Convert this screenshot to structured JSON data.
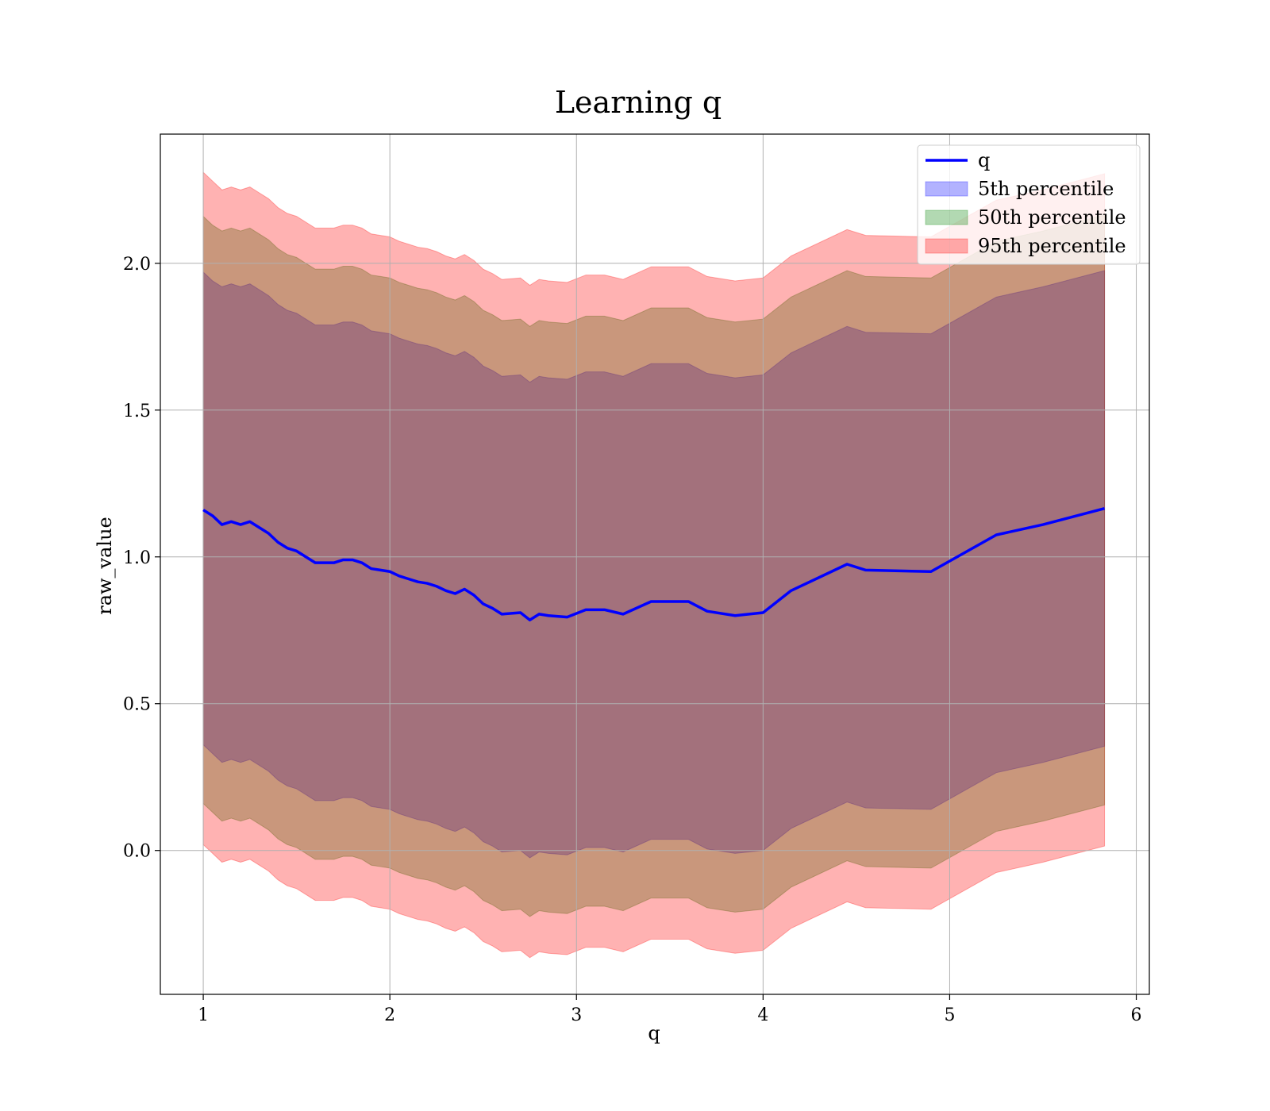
{
  "chart_data": {
    "type": "line",
    "title": "Learning q",
    "xlabel": "q",
    "ylabel": "raw_value",
    "xlim": [
      0.77,
      6.07
    ],
    "ylim": [
      -0.49,
      2.44
    ],
    "xticks": [
      1,
      2,
      3,
      4,
      5,
      6
    ],
    "yticks": [
      0.0,
      0.5,
      1.0,
      1.5,
      2.0
    ],
    "xtick_labels": [
      "1",
      "2",
      "3",
      "4",
      "5",
      "6"
    ],
    "ytick_labels": [
      "0.0",
      "0.5",
      "1.0",
      "1.5",
      "2.0"
    ],
    "grid": true,
    "legend_position": "top-right",
    "colors": {
      "line": "#0000ff",
      "band_5": "#0000ff",
      "band_50": "#008000",
      "band_95": "#ff0000"
    },
    "legend": [
      "q",
      "5th percentile",
      "50th percentile",
      "95th percentile"
    ],
    "x": [
      1.0,
      1.05,
      1.1,
      1.15,
      1.2,
      1.25,
      1.3,
      1.35,
      1.4,
      1.45,
      1.5,
      1.55,
      1.6,
      1.65,
      1.7,
      1.75,
      1.8,
      1.85,
      1.9,
      1.95,
      2.0,
      2.05,
      2.1,
      2.15,
      2.2,
      2.25,
      2.3,
      2.35,
      2.4,
      2.45,
      2.5,
      2.55,
      2.6,
      2.7,
      2.75,
      2.8,
      2.85,
      2.95,
      3.05,
      3.15,
      3.25,
      3.4,
      3.6,
      3.7,
      3.85,
      4.0,
      4.15,
      4.45,
      4.55,
      4.9,
      5.25,
      5.5,
      5.83
    ],
    "series": [
      {
        "name": "q",
        "values": [
          1.16,
          1.14,
          1.11,
          1.12,
          1.11,
          1.12,
          1.1,
          1.08,
          1.05,
          1.03,
          1.02,
          1.0,
          0.98,
          0.98,
          0.98,
          0.99,
          0.99,
          0.98,
          0.96,
          0.955,
          0.95,
          0.935,
          0.925,
          0.915,
          0.91,
          0.9,
          0.885,
          0.875,
          0.89,
          0.87,
          0.84,
          0.825,
          0.805,
          0.81,
          0.785,
          0.805,
          0.8,
          0.795,
          0.82,
          0.82,
          0.805,
          0.848,
          0.848,
          0.815,
          0.8,
          0.81,
          0.885,
          0.975,
          0.955,
          0.95,
          1.075,
          1.11,
          1.165
        ]
      }
    ],
    "bands": [
      {
        "name": "5th percentile",
        "lower": [
          0.36,
          0.33,
          0.3,
          0.31,
          0.3,
          0.31,
          0.29,
          0.27,
          0.24,
          0.22,
          0.21,
          0.19,
          0.17,
          0.17,
          0.17,
          0.18,
          0.18,
          0.17,
          0.15,
          0.145,
          0.14,
          0.125,
          0.115,
          0.105,
          0.1,
          0.09,
          0.075,
          0.065,
          0.08,
          0.06,
          0.03,
          0.015,
          -0.005,
          0.0,
          -0.025,
          -0.005,
          -0.01,
          -0.015,
          0.01,
          0.01,
          -0.005,
          0.038,
          0.038,
          0.005,
          -0.01,
          0.0,
          0.075,
          0.165,
          0.145,
          0.14,
          0.265,
          0.3,
          0.355
        ],
        "upper": [
          1.97,
          1.94,
          1.92,
          1.93,
          1.92,
          1.93,
          1.91,
          1.89,
          1.86,
          1.84,
          1.83,
          1.81,
          1.79,
          1.79,
          1.79,
          1.8,
          1.8,
          1.79,
          1.77,
          1.765,
          1.76,
          1.745,
          1.735,
          1.725,
          1.72,
          1.71,
          1.695,
          1.685,
          1.7,
          1.68,
          1.65,
          1.635,
          1.615,
          1.62,
          1.595,
          1.615,
          1.61,
          1.605,
          1.63,
          1.63,
          1.615,
          1.658,
          1.658,
          1.625,
          1.61,
          1.62,
          1.695,
          1.785,
          1.765,
          1.76,
          1.885,
          1.92,
          1.975
        ]
      },
      {
        "name": "50th percentile",
        "lower": [
          0.16,
          0.13,
          0.1,
          0.11,
          0.1,
          0.11,
          0.09,
          0.07,
          0.04,
          0.02,
          0.01,
          -0.01,
          -0.03,
          -0.03,
          -0.03,
          -0.02,
          -0.02,
          -0.03,
          -0.05,
          -0.055,
          -0.06,
          -0.075,
          -0.085,
          -0.095,
          -0.1,
          -0.11,
          -0.125,
          -0.135,
          -0.12,
          -0.14,
          -0.17,
          -0.185,
          -0.205,
          -0.2,
          -0.225,
          -0.205,
          -0.21,
          -0.215,
          -0.19,
          -0.19,
          -0.205,
          -0.162,
          -0.162,
          -0.195,
          -0.21,
          -0.2,
          -0.125,
          -0.035,
          -0.055,
          -0.06,
          0.065,
          0.1,
          0.155
        ],
        "upper": [
          2.16,
          2.13,
          2.11,
          2.12,
          2.11,
          2.12,
          2.1,
          2.08,
          2.05,
          2.03,
          2.02,
          2.0,
          1.98,
          1.98,
          1.98,
          1.99,
          1.99,
          1.98,
          1.96,
          1.955,
          1.95,
          1.935,
          1.925,
          1.915,
          1.91,
          1.9,
          1.885,
          1.875,
          1.89,
          1.87,
          1.84,
          1.825,
          1.805,
          1.81,
          1.785,
          1.805,
          1.8,
          1.795,
          1.82,
          1.82,
          1.805,
          1.848,
          1.848,
          1.815,
          1.8,
          1.81,
          1.885,
          1.975,
          1.955,
          1.95,
          2.075,
          2.11,
          2.165
        ]
      },
      {
        "name": "95th percentile",
        "lower": [
          0.02,
          -0.01,
          -0.04,
          -0.03,
          -0.04,
          -0.03,
          -0.05,
          -0.07,
          -0.1,
          -0.12,
          -0.13,
          -0.15,
          -0.17,
          -0.17,
          -0.17,
          -0.16,
          -0.16,
          -0.17,
          -0.19,
          -0.195,
          -0.2,
          -0.215,
          -0.225,
          -0.235,
          -0.24,
          -0.25,
          -0.265,
          -0.275,
          -0.26,
          -0.28,
          -0.31,
          -0.325,
          -0.345,
          -0.34,
          -0.365,
          -0.345,
          -0.35,
          -0.355,
          -0.33,
          -0.33,
          -0.345,
          -0.302,
          -0.302,
          -0.335,
          -0.35,
          -0.34,
          -0.265,
          -0.175,
          -0.195,
          -0.2,
          -0.075,
          -0.04,
          0.015
        ],
        "upper": [
          2.31,
          2.28,
          2.25,
          2.26,
          2.25,
          2.26,
          2.24,
          2.22,
          2.19,
          2.17,
          2.16,
          2.14,
          2.12,
          2.12,
          2.12,
          2.13,
          2.13,
          2.12,
          2.1,
          2.095,
          2.09,
          2.075,
          2.065,
          2.055,
          2.05,
          2.04,
          2.025,
          2.015,
          2.03,
          2.01,
          1.98,
          1.965,
          1.945,
          1.95,
          1.925,
          1.945,
          1.94,
          1.935,
          1.96,
          1.96,
          1.945,
          1.988,
          1.988,
          1.955,
          1.94,
          1.95,
          2.025,
          2.115,
          2.095,
          2.09,
          2.215,
          2.25,
          2.305
        ]
      }
    ]
  }
}
